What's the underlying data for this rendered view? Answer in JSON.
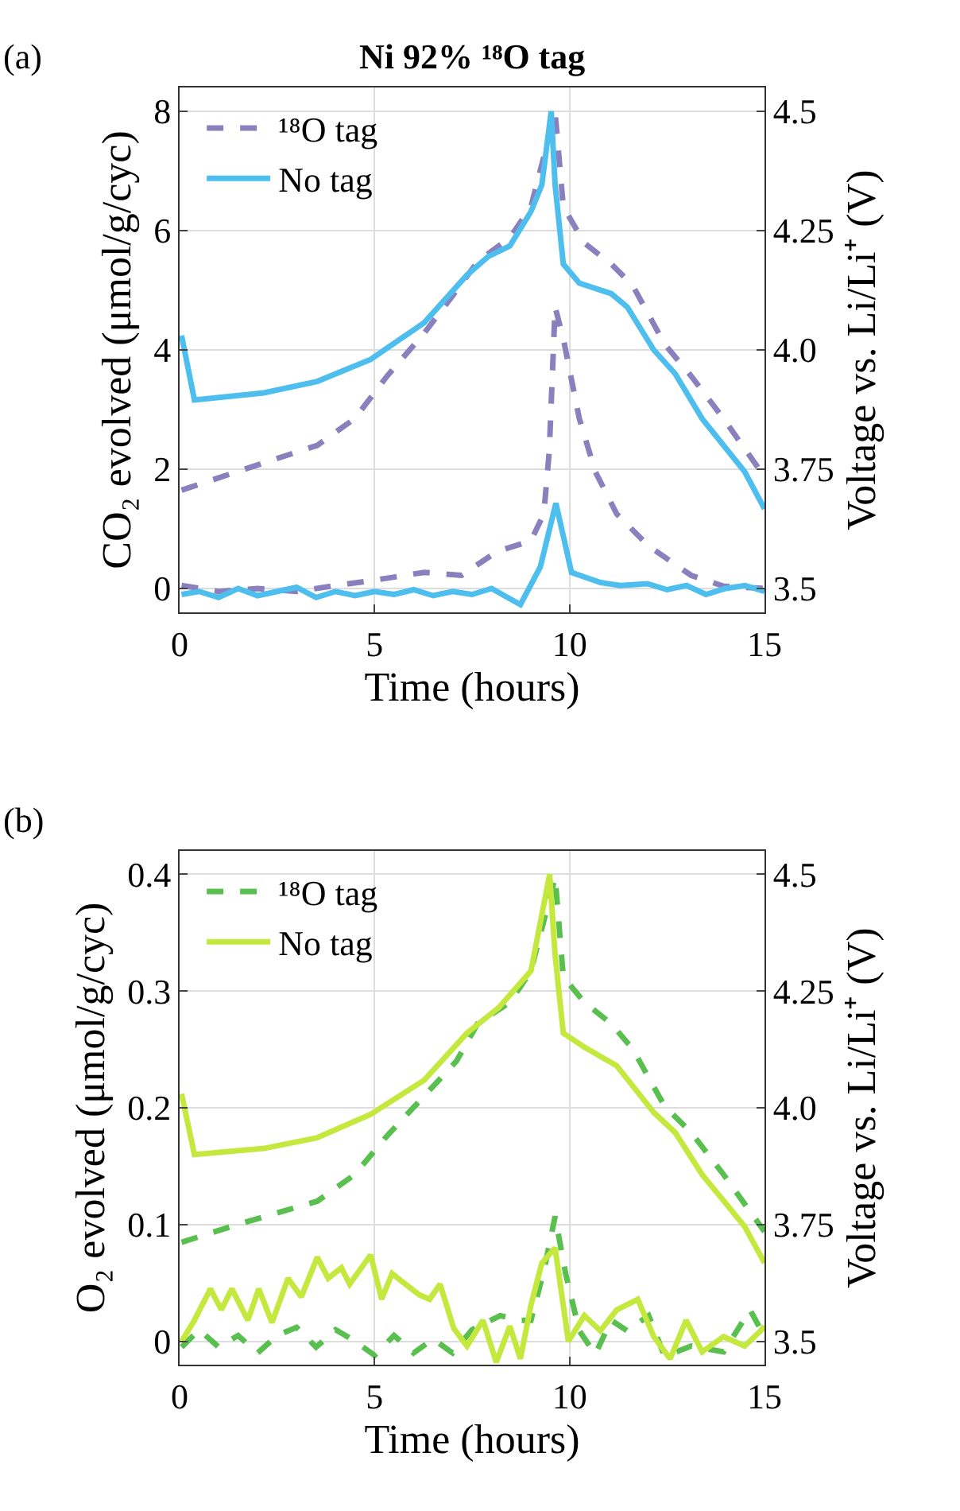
{
  "chart_data": [
    {
      "type": "line",
      "title": "Ni 92% ¹⁸O tag",
      "annotations": [
        "(a)"
      ],
      "xlabel": "Time (hours)",
      "ylabel": "CO₂ evolved (μmol/g/cyc)",
      "y2label": "Voltage vs. Li/Li⁺ (V)",
      "xlim": [
        0,
        15
      ],
      "xticks": [
        0,
        5,
        10,
        15
      ],
      "ylim": [
        -0.4,
        8.4
      ],
      "yticks": [
        0,
        2,
        4,
        6,
        8
      ],
      "y2lim": [
        3.45,
        4.55
      ],
      "y2ticks": [
        3.5,
        3.75,
        {
          "value": 4,
          "label": "4.0"
        },
        4.25,
        4.5
      ],
      "grid": true,
      "legend": "top left",
      "series": [
        {
          "name": "¹⁸O tag",
          "color": "#8a80bd",
          "line_style": "dashed",
          "x": [
            0.05,
            1,
            2,
            3,
            4,
            4.9,
            6.27,
            7.23,
            8.14,
            9.01,
            9.34,
            9.48,
            9.63,
            9.84,
            10.25,
            10.66,
            11.21,
            12.03,
            13.12,
            13.95,
            15.0
          ],
          "values": [
            0.05,
            -0.05,
            0.0,
            -0.05,
            0.05,
            0.13,
            0.27,
            0.22,
            0.62,
            0.8,
            1.25,
            2.3,
            4.72,
            4.19,
            2.85,
            1.96,
            1.25,
            0.71,
            0.22,
            0.04,
            0.0
          ]
        },
        {
          "name": "No tag",
          "color": "#4dbeee",
          "line_style": "solid",
          "x": [
            0.05,
            0.5,
            1,
            1.5,
            2,
            2.5,
            3,
            3.5,
            4,
            4.5,
            5,
            5.5,
            6,
            6.5,
            7,
            7.5,
            8,
            8.74,
            9.25,
            9.65,
            10.05,
            10.35,
            10.8,
            11.3,
            12,
            12.5,
            13,
            13.5,
            14,
            14.5,
            15
          ],
          "values": [
            -0.1,
            -0.05,
            -0.15,
            0.0,
            -0.12,
            -0.05,
            0.02,
            -0.15,
            -0.05,
            -0.12,
            -0.05,
            -0.1,
            -0.02,
            -0.12,
            -0.05,
            -0.1,
            0.0,
            -0.27,
            0.36,
            1.43,
            0.27,
            0.2,
            0.1,
            0.05,
            0.08,
            -0.02,
            0.05,
            -0.1,
            0.0,
            0.05,
            -0.05
          ]
        },
        {
          "color": "#8a80bd",
          "line_style": "dashed",
          "axis": "y2",
          "x": [
            0.05,
            1.48,
            3.53,
            4.49,
            5.32,
            6.27,
            7.1,
            7.64,
            8.47,
            9.01,
            9.63,
            9.84,
            10.38,
            11.07,
            11.62,
            12.44,
            13.12,
            13.95,
            15.0
          ],
          "values": [
            3.706,
            3.745,
            3.8,
            3.856,
            3.945,
            4.035,
            4.124,
            4.185,
            4.235,
            4.3,
            4.497,
            4.3,
            4.224,
            4.18,
            4.135,
            4.012,
            3.945,
            3.856,
            3.734
          ]
        },
        {
          "color": "#4dbeee",
          "line_style": "solid",
          "axis": "y2",
          "x": [
            0.05,
            0.38,
            2.16,
            3.53,
            4.9,
            6.27,
            7.37,
            7.92,
            8.47,
            9.01,
            9.29,
            9.53,
            9.63,
            9.84,
            10.25,
            11.07,
            11.48,
            12.16,
            12.71,
            13.4,
            14.49,
            15.0
          ],
          "values": [
            4.03,
            3.895,
            3.91,
            3.934,
            3.98,
            4.057,
            4.157,
            4.196,
            4.218,
            4.29,
            4.346,
            4.5,
            4.346,
            4.18,
            4.14,
            4.118,
            4.09,
            4.0,
            3.95,
            3.856,
            3.745,
            3.667
          ]
        }
      ]
    },
    {
      "type": "line",
      "annotations": [
        "(b)"
      ],
      "xlabel": "Time (hours)",
      "ylabel": "O₂ evolved (μmol/g/cyc)",
      "y2label": "Voltage vs. Li/Li⁺ (V)",
      "xlim": [
        0,
        15
      ],
      "xticks": [
        0,
        5,
        10,
        15
      ],
      "ylim": [
        -0.02,
        0.42
      ],
      "yticks": [
        0,
        0.1,
        0.2,
        0.3,
        0.4
      ],
      "y2lim": [
        3.45,
        4.55
      ],
      "y2ticks": [
        3.5,
        3.75,
        {
          "value": 4,
          "label": "4.0"
        },
        4.25,
        4.5
      ],
      "grid": true,
      "legend": "top left",
      "series": [
        {
          "name": "¹⁸O tag",
          "color": "#59bf4f",
          "line_style": "dashed",
          "x": [
            0.05,
            0.5,
            1,
            1.5,
            2,
            2.5,
            3,
            3.5,
            4,
            4.5,
            5,
            5.5,
            6,
            6.5,
            7,
            7.5,
            8.22,
            8.74,
            9.01,
            9.36,
            9.63,
            9.9,
            10.25,
            10.66,
            11.07,
            11.48,
            12.03,
            12.44,
            13.12,
            13.95,
            14.63,
            15.0
          ],
          "values": [
            -0.005,
            0.01,
            -0.005,
            0.005,
            -0.01,
            0.005,
            0.012,
            -0.005,
            0.01,
            0.0,
            -0.012,
            0.005,
            -0.01,
            0.002,
            -0.01,
            0.01,
            0.022,
            0.018,
            0.018,
            0.063,
            0.107,
            0.058,
            0.009,
            -0.011,
            0.018,
            0.009,
            0.022,
            -0.013,
            -0.004,
            -0.009,
            0.027,
            0.004
          ]
        },
        {
          "name": "No tag",
          "color": "#c5e83f",
          "line_style": "solid",
          "x": [
            0.05,
            0.38,
            0.79,
            1.07,
            1.34,
            1.75,
            2.03,
            2.37,
            2.78,
            3.12,
            3.53,
            3.81,
            4.15,
            4.36,
            4.9,
            5.18,
            5.45,
            5.79,
            6.14,
            6.41,
            6.68,
            7.03,
            7.37,
            7.78,
            8.12,
            8.47,
            8.74,
            9.01,
            9.29,
            9.63,
            9.97,
            10.38,
            10.79,
            11.21,
            11.75,
            12.16,
            12.58,
            12.99,
            13.4,
            13.95,
            14.49,
            14.9,
            15.0
          ],
          "values": [
            0.0,
            0.018,
            0.045,
            0.027,
            0.045,
            0.018,
            0.045,
            0.016,
            0.054,
            0.038,
            0.072,
            0.054,
            0.063,
            0.049,
            0.074,
            0.036,
            0.058,
            0.049,
            0.04,
            0.036,
            0.049,
            0.011,
            -0.004,
            0.018,
            -0.018,
            0.013,
            -0.015,
            0.031,
            0.067,
            0.08,
            0.0,
            0.022,
            0.009,
            0.027,
            0.036,
            0.004,
            -0.015,
            0.018,
            -0.009,
            0.004,
            -0.004,
            0.009,
            0.013
          ]
        },
        {
          "color": "#59bf4f",
          "line_style": "dashed",
          "axis": "y2",
          "x": [
            0.05,
            1.48,
            3.53,
            4.49,
            5.32,
            6.27,
            7.1,
            7.64,
            8.47,
            9.01,
            9.63,
            9.84,
            10.38,
            11.07,
            11.62,
            12.44,
            13.12,
            13.95,
            15.0
          ],
          "values": [
            3.712,
            3.75,
            3.8,
            3.857,
            3.94,
            4.025,
            4.1,
            4.18,
            4.226,
            4.293,
            4.494,
            4.28,
            4.226,
            4.18,
            4.126,
            4.003,
            3.947,
            3.857,
            3.735
          ]
        },
        {
          "color": "#c5e83f",
          "line_style": "solid",
          "axis": "y2",
          "x": [
            0.05,
            0.38,
            2.16,
            3.53,
            4.9,
            6.27,
            7.37,
            8.19,
            9.01,
            9.49,
            9.63,
            9.84,
            10.38,
            11.21,
            12.16,
            12.71,
            13.4,
            14.49,
            15.0
          ],
          "values": [
            4.03,
            3.9,
            3.913,
            3.936,
            3.986,
            4.059,
            4.16,
            4.215,
            4.293,
            4.5,
            4.327,
            4.16,
            4.13,
            4.09,
            3.99,
            3.947,
            3.857,
            3.746,
            3.668
          ]
        }
      ]
    }
  ]
}
